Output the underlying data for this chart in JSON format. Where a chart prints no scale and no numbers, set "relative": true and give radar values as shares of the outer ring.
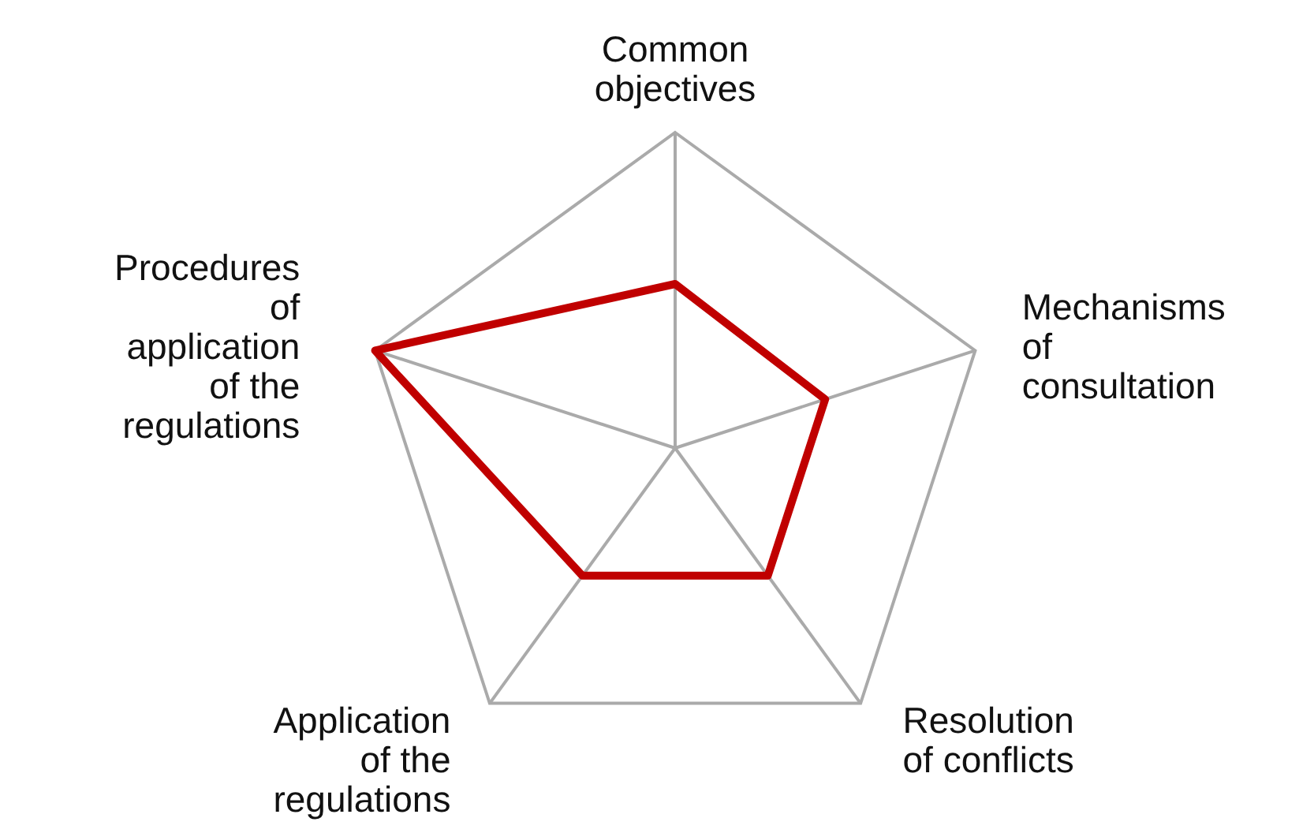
{
  "chart_data": {
    "type": "radar",
    "relative": true,
    "grid": true,
    "categories": [
      "Common objectives",
      "Mechanisms of consultation",
      "Resolution of conflicts",
      "Application of the regulations",
      "Procedures of application of the regulations"
    ],
    "series": [
      {
        "color": "#c00000",
        "values": [
          0.52,
          0.5,
          0.5,
          0.5,
          1
        ]
      }
    ]
  }
}
